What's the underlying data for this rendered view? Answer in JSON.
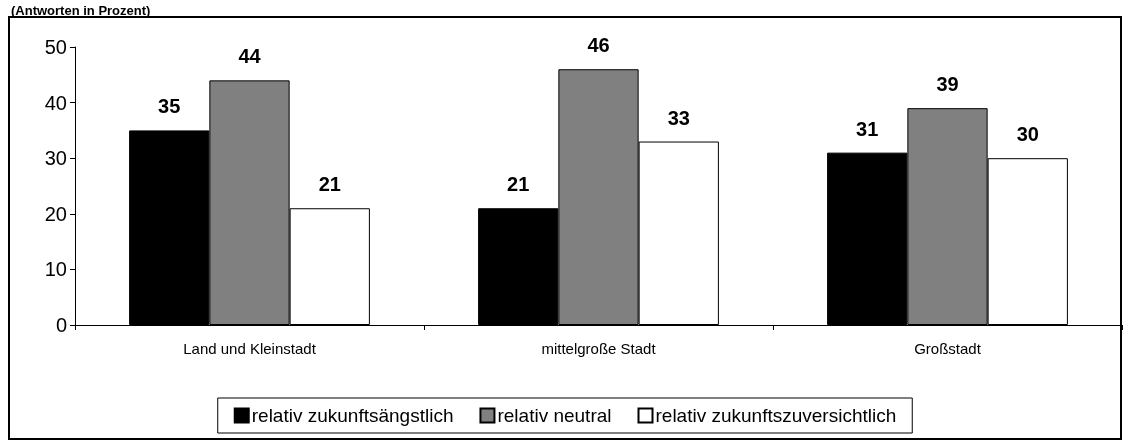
{
  "chart_data": {
    "type": "bar",
    "subtitle": "(Antworten in Prozent)",
    "categories": [
      "Land und Kleinstadt",
      "mittelgroße Stadt",
      "Großstadt"
    ],
    "series": [
      {
        "name": "relativ zukunftsängstlich",
        "color": "#000000",
        "values": [
          35,
          21,
          31
        ]
      },
      {
        "name": "relativ neutral",
        "color": "#808080",
        "values": [
          44,
          46,
          39
        ]
      },
      {
        "name": "relativ zukunftszuversichtlich",
        "color": "#ffffff",
        "values": [
          21,
          33,
          30
        ]
      }
    ],
    "ylim": [
      0,
      50
    ],
    "yticks": [
      0,
      10,
      20,
      30,
      40,
      50
    ],
    "grid": false,
    "legend": "bottom",
    "data_labels": true
  }
}
